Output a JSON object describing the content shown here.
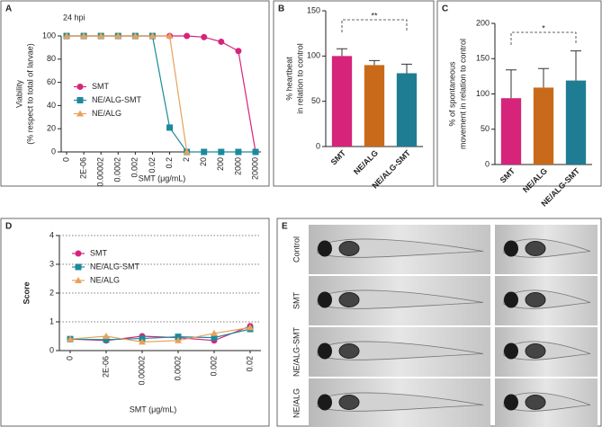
{
  "chart_data": [
    {
      "type": "line",
      "panel": "A",
      "title": "24 hpi",
      "ylabel": [
        "Viability",
        "(% respect to total of larvae)"
      ],
      "xlabel": "SMT (μg/mL)",
      "categories": [
        "0",
        "2E-06",
        "0.00002",
        "0.0002",
        "0.002",
        "0.02",
        "0.2",
        "2",
        "20",
        "200",
        "2000",
        "20000"
      ],
      "ylim": [
        0,
        100
      ],
      "yticks": [
        0,
        20,
        40,
        60,
        80,
        100
      ],
      "grid": false,
      "legend": "center left",
      "series": [
        {
          "name": "SMT",
          "color": "#d6247a",
          "marker": "circle",
          "values": [
            100,
            100,
            100,
            100,
            100,
            100,
            100,
            100,
            99,
            95,
            87,
            0
          ]
        },
        {
          "name": "NE/ALG-SMT",
          "color": "#1b8a9c",
          "marker": "square",
          "values": [
            100,
            100,
            100,
            100,
            100,
            100,
            21,
            0,
            0,
            0,
            0,
            0
          ]
        },
        {
          "name": "NE/ALG",
          "color": "#e8a15a",
          "marker": "triangle",
          "values": [
            100,
            100,
            100,
            100,
            100,
            100,
            100,
            0,
            null,
            null,
            null,
            null
          ]
        }
      ]
    },
    {
      "type": "bar",
      "panel": "B",
      "ylabel": [
        "% heartbeat",
        "in relation to control"
      ],
      "categories": [
        "SMT",
        "NE/ALG",
        "NE/ALG-SMT"
      ],
      "values": [
        100,
        90,
        81
      ],
      "errors": [
        8,
        5,
        10
      ],
      "colors": [
        "#d6247a",
        "#c96a1b",
        "#1e7d93"
      ],
      "ylim": [
        0,
        150
      ],
      "yticks": [
        0,
        50,
        100,
        150
      ],
      "brackets": [
        {
          "label": "**",
          "between": [
            "SMT",
            "NE/ALG-SMT"
          ]
        }
      ]
    },
    {
      "type": "bar",
      "panel": "C",
      "ylabel": [
        "% of spontaneous",
        "movement in relation to control"
      ],
      "categories": [
        "SMT",
        "NE/ALG",
        "NE/ALG-SMT"
      ],
      "values": [
        94,
        109,
        119
      ],
      "errors": [
        40,
        27,
        42
      ],
      "colors": [
        "#d6247a",
        "#c96a1b",
        "#1e7d93"
      ],
      "ylim": [
        0,
        200
      ],
      "yticks": [
        0,
        50,
        100,
        150,
        200
      ],
      "brackets": [
        {
          "label": "*",
          "between": [
            "SMT",
            "NE/ALG-SMT"
          ]
        }
      ]
    },
    {
      "type": "line",
      "panel": "D",
      "ylabel": [
        "Score"
      ],
      "xlabel": "SMT (μg/mL)",
      "categories": [
        "0",
        "2E-06",
        "0.00002",
        "0.0002",
        "0.002",
        "0.02"
      ],
      "ylim": [
        0,
        4
      ],
      "yticks": [
        0,
        1,
        2,
        3,
        4
      ],
      "grid": true,
      "legend": "upper left",
      "series": [
        {
          "name": "SMT",
          "color": "#d6247a",
          "marker": "circle",
          "values": [
            0.4,
            0.35,
            0.5,
            0.45,
            0.35,
            0.85
          ]
        },
        {
          "name": "NE/ALG-SMT",
          "color": "#1b8a9c",
          "marker": "square",
          "values": [
            0.4,
            0.38,
            0.42,
            0.48,
            0.45,
            0.75
          ]
        },
        {
          "name": "NE/ALG",
          "color": "#e8a15a",
          "marker": "triangle",
          "values": [
            0.4,
            0.5,
            0.3,
            0.35,
            0.6,
            0.8
          ]
        }
      ]
    }
  ],
  "panel_e": {
    "panel": "E",
    "rows": [
      "Control",
      "SMT",
      "NE/ALG-SMT",
      "NE/ALG"
    ]
  }
}
